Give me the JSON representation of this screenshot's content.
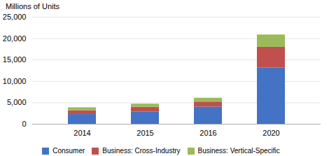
{
  "chart_data": {
    "type": "bar",
    "stacked": true,
    "ylabel": "Millions of Units",
    "categories": [
      "2014",
      "2015",
      "2016",
      "2020"
    ],
    "series": [
      {
        "name": "Consumer",
        "color": "#4472C4",
        "values": [
          2277,
          2874,
          4019,
          13172
        ]
      },
      {
        "name": "Business: Cross-Industry",
        "color": "#C0504D",
        "values": [
          896,
          1093,
          1171,
          4816
        ]
      },
      {
        "name": "Business: Vertical-Specific",
        "color": "#9BBB59",
        "values": [
          684,
          736,
          896,
          2876
        ]
      }
    ],
    "ylim": [
      0,
      25000
    ],
    "yticks": [
      0,
      {
        "value": 5000,
        "label": "5,000"
      },
      {
        "value": 10000,
        "label": "10,000"
      },
      {
        "value": 15000,
        "label": "15,000"
      },
      {
        "value": 20000,
        "label": "20,000"
      },
      {
        "value": 25000,
        "label": "25,000"
      }
    ],
    "grid": true,
    "legend": "bottom"
  }
}
